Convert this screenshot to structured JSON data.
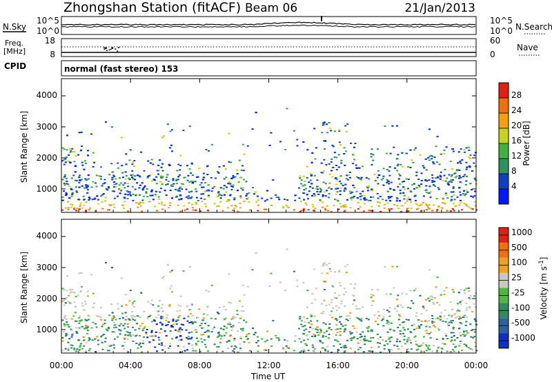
{
  "header": {
    "title": "Zhongshan Station (fitACF)",
    "beam": "Beam 06",
    "date": "21/Jan/2013"
  },
  "strip1": {
    "left_label": "N.Sky",
    "right_label": "N.Search",
    "left_ticks": [
      "10^5",
      "10^0"
    ],
    "right_ticks": [
      "10^5",
      "10^0"
    ]
  },
  "strip2": {
    "left_label_1": "Freq.",
    "left_label_2": "[MHz]",
    "right_label": "Nave",
    "left_ticks": [
      "18",
      "8"
    ],
    "right_ticks": [
      "60",
      "0"
    ]
  },
  "cpid": {
    "label": "CPID",
    "text": "normal (fast stereo) 153"
  },
  "chart_data": [
    {
      "type": "heatmap",
      "panel": "power",
      "ylabel": "Slant Range [km]",
      "ylim": [
        180,
        4500
      ],
      "yticks": [
        "1000",
        "2000",
        "3000",
        "4000"
      ],
      "xlim": [
        0,
        24
      ],
      "colorbar": {
        "label": "Power [dB]",
        "ticks": [
          "4",
          "8",
          "12",
          "16",
          "20",
          "24",
          "28"
        ],
        "colors": [
          "#0018ff",
          "#1040c0",
          "#2f9060",
          "#40b040",
          "#c8d020",
          "#f0a010",
          "#f07010",
          "#e02010"
        ]
      }
    },
    {
      "type": "heatmap",
      "panel": "velocity",
      "ylabel": "Slant Range [km]",
      "ylim": [
        180,
        4500
      ],
      "yticks": [
        "1000",
        "2000",
        "3000",
        "4000"
      ],
      "xlim": [
        0,
        24
      ],
      "colorbar": {
        "label": "Velocity [m s",
        "label_sup": "-1",
        "label_end": "]",
        "ticks": [
          "1000",
          "500",
          "100",
          "25",
          "-25",
          "-100",
          "-500",
          "-1000"
        ],
        "colors": [
          "#1030c0",
          "#2f60a0",
          "#2f8a60",
          "#50b840",
          "#c8c8c0",
          "#f0a020",
          "#f07010",
          "#e02010"
        ]
      }
    }
  ],
  "xaxis": {
    "ticks": [
      "00:00",
      "04:00",
      "08:00",
      "12:00",
      "16:00",
      "20:00",
      "00:00"
    ],
    "label": "Time UT"
  }
}
